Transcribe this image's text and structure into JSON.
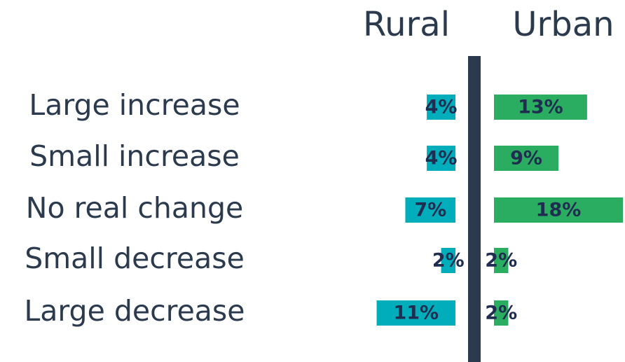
{
  "chart_data": {
    "type": "bar",
    "categories": [
      "Large increase",
      "Small increase",
      "No real change",
      "Small decrease",
      "Large decrease"
    ],
    "series": [
      {
        "name": "Rural",
        "color": "#00adbb",
        "values": [
          4,
          4,
          7,
          2,
          11
        ],
        "value_labels": [
          "4%",
          "4%",
          "7%",
          "2%",
          "11%"
        ]
      },
      {
        "name": "Urban",
        "color": "#2aad60",
        "values": [
          13,
          9,
          18,
          2,
          2
        ],
        "value_labels": [
          "13%",
          "9%",
          "18%",
          "2%",
          "2%"
        ]
      }
    ]
  }
}
